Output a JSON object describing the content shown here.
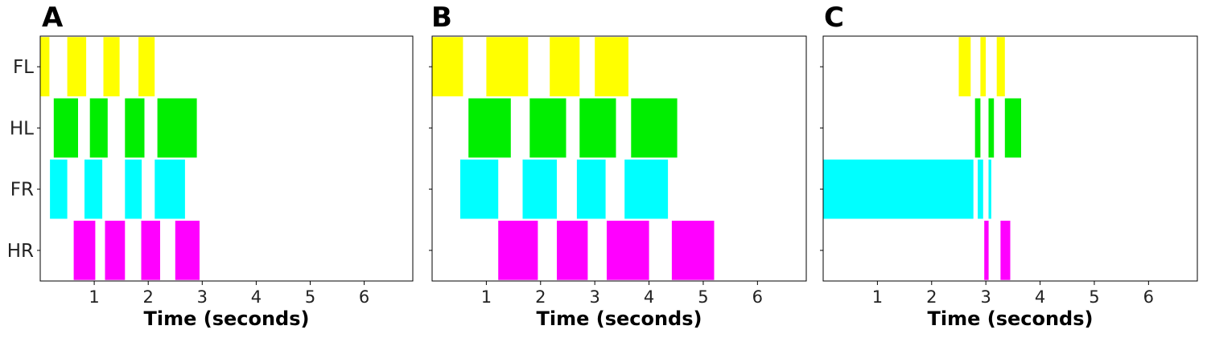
{
  "chart_data": [
    {
      "type": "gait-diagram",
      "panel_label": "A",
      "xlabel": "Time (seconds)",
      "ylabel": "",
      "xlim": [
        0,
        6.9
      ],
      "xticks": [
        1,
        2,
        3,
        4,
        5,
        6
      ],
      "rows": [
        "FL",
        "HL",
        "FR",
        "HR"
      ],
      "series": [
        {
          "name": "FL",
          "color": "#ffff00",
          "intervals": [
            [
              0,
              0.17
            ],
            [
              0.5,
              0.85
            ],
            [
              1.17,
              1.47
            ],
            [
              1.82,
              2.12
            ]
          ]
        },
        {
          "name": "HL",
          "color": "#00ee00",
          "intervals": [
            [
              0.25,
              0.7
            ],
            [
              0.92,
              1.25
            ],
            [
              1.57,
              1.93
            ],
            [
              2.17,
              2.9
            ]
          ]
        },
        {
          "name": "FR",
          "color": "#00ffff",
          "intervals": [
            [
              0.18,
              0.5
            ],
            [
              0.82,
              1.15
            ],
            [
              1.57,
              1.88
            ],
            [
              2.12,
              2.68
            ]
          ]
        },
        {
          "name": "HR",
          "color": "#ff00ff",
          "intervals": [
            [
              0.62,
              1.02
            ],
            [
              1.2,
              1.57
            ],
            [
              1.87,
              2.22
            ],
            [
              2.5,
              2.95
            ]
          ]
        }
      ]
    },
    {
      "type": "gait-diagram",
      "panel_label": "B",
      "xlabel": "Time (seconds)",
      "ylabel": "",
      "xlim": [
        0,
        6.9
      ],
      "xticks": [
        1,
        2,
        3,
        4,
        5,
        6
      ],
      "rows": [
        "FL",
        "HL",
        "FR",
        "HR"
      ],
      "series": [
        {
          "name": "FL",
          "color": "#ffff00",
          "intervals": [
            [
              0,
              0.57
            ],
            [
              1.0,
              1.77
            ],
            [
              2.17,
              2.72
            ],
            [
              3.0,
              3.62
            ]
          ]
        },
        {
          "name": "HL",
          "color": "#00ee00",
          "intervals": [
            [
              0.67,
              1.45
            ],
            [
              1.8,
              2.47
            ],
            [
              2.72,
              3.39
            ],
            [
              3.67,
              4.52
            ]
          ]
        },
        {
          "name": "FR",
          "color": "#00ffff",
          "intervals": [
            [
              0.52,
              1.22
            ],
            [
              1.67,
              2.3
            ],
            [
              2.67,
              3.2
            ],
            [
              3.55,
              4.35
            ]
          ]
        },
        {
          "name": "HR",
          "color": "#ff00ff",
          "intervals": [
            [
              1.22,
              1.95
            ],
            [
              2.3,
              2.87
            ],
            [
              3.22,
              4.0
            ],
            [
              4.42,
              5.2
            ]
          ]
        }
      ]
    },
    {
      "type": "gait-diagram",
      "panel_label": "C",
      "xlabel": "Time (seconds)",
      "ylabel": "",
      "xlim": [
        0,
        6.9
      ],
      "xticks": [
        1,
        2,
        3,
        4,
        5,
        6
      ],
      "rows": [
        "FL",
        "HL",
        "FR",
        "HR"
      ],
      "series": [
        {
          "name": "FL",
          "color": "#ffff00",
          "intervals": [
            [
              2.5,
              2.72
            ],
            [
              2.9,
              3.0
            ],
            [
              3.2,
              3.35
            ]
          ]
        },
        {
          "name": "HL",
          "color": "#00ee00",
          "intervals": [
            [
              2.8,
              2.9
            ],
            [
              3.05,
              3.15
            ],
            [
              3.35,
              3.65
            ]
          ]
        },
        {
          "name": "FR",
          "color": "#00ffff",
          "intervals": [
            [
              0,
              2.77
            ],
            [
              2.85,
              2.95
            ],
            [
              3.05,
              3.1
            ]
          ]
        },
        {
          "name": "HR",
          "color": "#ff00ff",
          "intervals": [
            [
              2.97,
              3.05
            ],
            [
              3.27,
              3.45
            ]
          ]
        }
      ]
    }
  ]
}
